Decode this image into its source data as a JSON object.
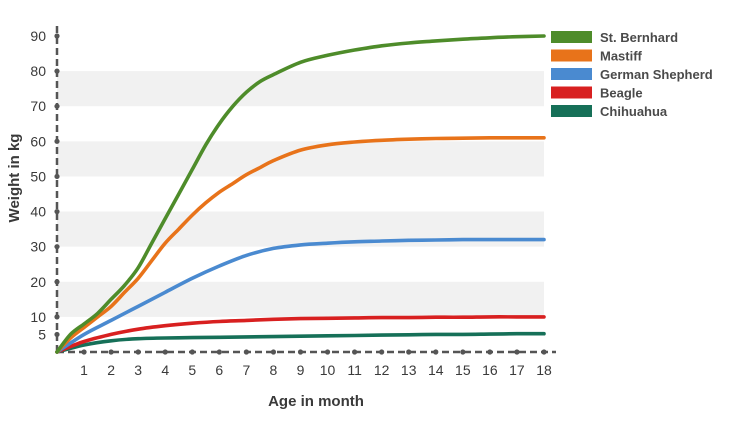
{
  "chart_data": {
    "type": "line",
    "title": "",
    "xlabel": "Age in month",
    "ylabel": "Weight in kg",
    "xlim": [
      0,
      18
    ],
    "ylim": [
      0,
      90
    ],
    "x_ticks": [
      1,
      2,
      3,
      4,
      5,
      6,
      7,
      8,
      9,
      10,
      11,
      12,
      13,
      14,
      15,
      16,
      17,
      18
    ],
    "y_ticks": [
      5,
      10,
      20,
      30,
      40,
      50,
      60,
      70,
      80,
      90
    ],
    "grid": "alternating horizontal bands",
    "legend_position": "top-right",
    "series": [
      {
        "name": "St. Bernhard",
        "color": "#4e8c2a",
        "points": [
          [
            0,
            0
          ],
          [
            0.5,
            5
          ],
          [
            1,
            8
          ],
          [
            1.5,
            11
          ],
          [
            2,
            15
          ],
          [
            2.5,
            19
          ],
          [
            3,
            24
          ],
          [
            3.5,
            31
          ],
          [
            4,
            38
          ],
          [
            4.5,
            45
          ],
          [
            5,
            52
          ],
          [
            5.5,
            59
          ],
          [
            6,
            65
          ],
          [
            6.5,
            70
          ],
          [
            7,
            74
          ],
          [
            7.5,
            77
          ],
          [
            8,
            79
          ],
          [
            9,
            82.5
          ],
          [
            10,
            84.5
          ],
          [
            11,
            86
          ],
          [
            12,
            87.2
          ],
          [
            13,
            88
          ],
          [
            14,
            88.6
          ],
          [
            15,
            89.1
          ],
          [
            16,
            89.5
          ],
          [
            17,
            89.8
          ],
          [
            18,
            90
          ]
        ]
      },
      {
        "name": "Mastiff",
        "color": "#e8731a",
        "points": [
          [
            0,
            0
          ],
          [
            0.5,
            4
          ],
          [
            1,
            7
          ],
          [
            1.5,
            10
          ],
          [
            2,
            13
          ],
          [
            2.5,
            17
          ],
          [
            3,
            21
          ],
          [
            3.5,
            26
          ],
          [
            4,
            31
          ],
          [
            4.5,
            35
          ],
          [
            5,
            39
          ],
          [
            5.5,
            42.5
          ],
          [
            6,
            45.5
          ],
          [
            6.5,
            48
          ],
          [
            7,
            50.5
          ],
          [
            7.5,
            52.5
          ],
          [
            8,
            54.5
          ],
          [
            9,
            57.5
          ],
          [
            10,
            59
          ],
          [
            11,
            59.8
          ],
          [
            12,
            60.3
          ],
          [
            13,
            60.6
          ],
          [
            14,
            60.8
          ],
          [
            15,
            60.9
          ],
          [
            16,
            61
          ],
          [
            17,
            61
          ],
          [
            18,
            61
          ]
        ]
      },
      {
        "name": "German Shepherd",
        "color": "#4a8ad0",
        "points": [
          [
            0,
            0
          ],
          [
            1,
            5
          ],
          [
            2,
            9
          ],
          [
            3,
            13
          ],
          [
            4,
            17
          ],
          [
            5,
            21
          ],
          [
            6,
            24.5
          ],
          [
            7,
            27.5
          ],
          [
            8,
            29.5
          ],
          [
            9,
            30.5
          ],
          [
            10,
            31
          ],
          [
            11,
            31.4
          ],
          [
            12,
            31.6
          ],
          [
            13,
            31.8
          ],
          [
            14,
            31.9
          ],
          [
            15,
            32
          ],
          [
            16,
            32
          ],
          [
            17,
            32
          ],
          [
            18,
            32
          ]
        ]
      },
      {
        "name": "Beagle",
        "color": "#d82020",
        "points": [
          [
            0,
            0
          ],
          [
            1,
            3
          ],
          [
            2,
            5
          ],
          [
            3,
            6.5
          ],
          [
            4,
            7.5
          ],
          [
            5,
            8.2
          ],
          [
            6,
            8.7
          ],
          [
            7,
            9
          ],
          [
            8,
            9.3
          ],
          [
            9,
            9.5
          ],
          [
            10,
            9.6
          ],
          [
            11,
            9.7
          ],
          [
            12,
            9.8
          ],
          [
            13,
            9.8
          ],
          [
            14,
            9.9
          ],
          [
            15,
            9.9
          ],
          [
            16,
            10
          ],
          [
            17,
            10
          ],
          [
            18,
            10
          ]
        ]
      },
      {
        "name": "Chihuahua",
        "color": "#167058",
        "points": [
          [
            0,
            0
          ],
          [
            1,
            2
          ],
          [
            2,
            3.2
          ],
          [
            3,
            3.8
          ],
          [
            4,
            4
          ],
          [
            5,
            4.1
          ],
          [
            6,
            4.2
          ],
          [
            7,
            4.3
          ],
          [
            8,
            4.4
          ],
          [
            9,
            4.5
          ],
          [
            10,
            4.6
          ],
          [
            11,
            4.7
          ],
          [
            12,
            4.8
          ],
          [
            13,
            4.9
          ],
          [
            14,
            5
          ],
          [
            15,
            5
          ],
          [
            16,
            5.1
          ],
          [
            17,
            5.2
          ],
          [
            18,
            5.2
          ]
        ]
      }
    ]
  }
}
